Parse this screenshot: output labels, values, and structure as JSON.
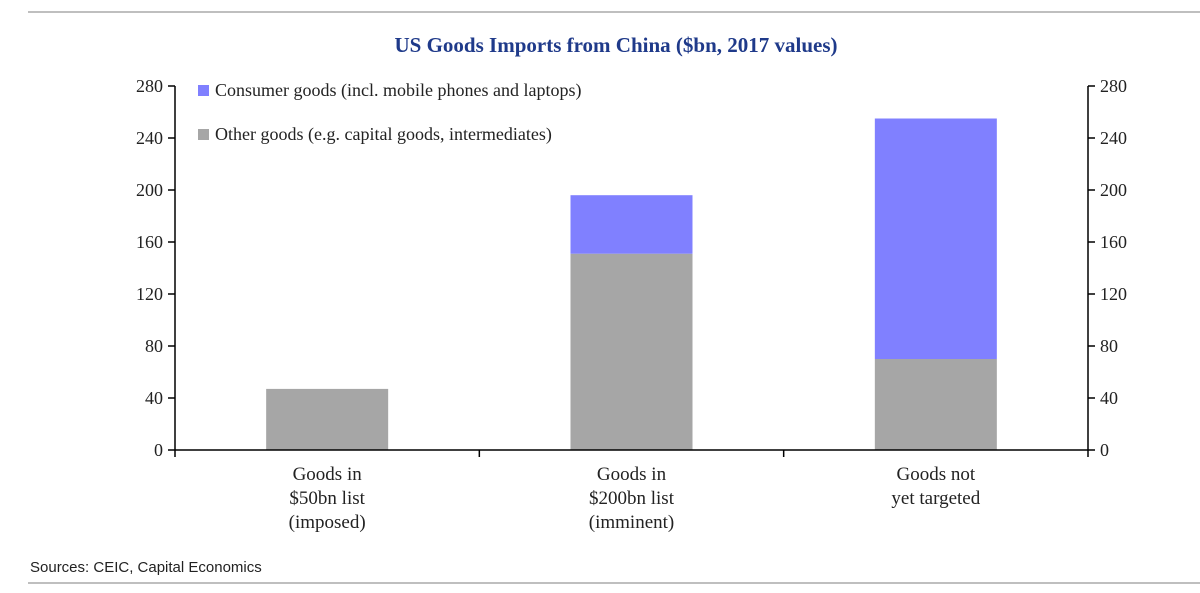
{
  "chart_data": {
    "type": "bar",
    "stacked": true,
    "title": "US Goods Imports from China ($bn, 2017 values)",
    "categories": [
      [
        "Goods in",
        "$50bn list",
        "(imposed)"
      ],
      [
        "Goods in",
        "$200bn list",
        "(imminent)"
      ],
      [
        "Goods not",
        "yet targeted"
      ]
    ],
    "series": [
      {
        "name": "Other goods (e.g. capital goods, intermediates)",
        "color": "#a6a6a6",
        "values": [
          47,
          151,
          70
        ]
      },
      {
        "name": "Consumer goods (incl. mobile phones and laptops)",
        "color": "#8080ff",
        "values": [
          0,
          45,
          185
        ]
      }
    ],
    "legend_order": [
      1,
      0
    ],
    "ylim": [
      0,
      280
    ],
    "yticks": [
      0,
      40,
      80,
      120,
      160,
      200,
      240,
      280
    ],
    "y_axis_both_sides": true,
    "grid": false,
    "legend_position": "top-left",
    "source": "Sources: CEIC, Capital Economics"
  }
}
